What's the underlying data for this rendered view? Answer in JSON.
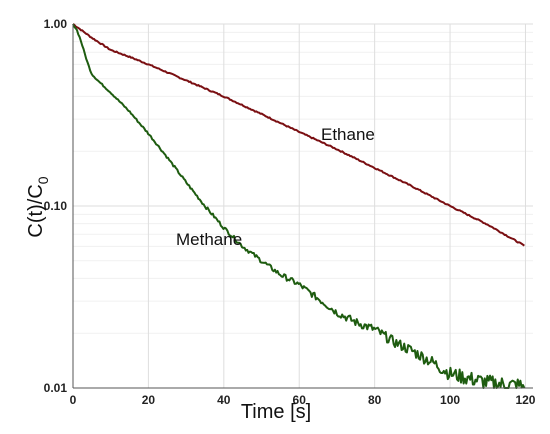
{
  "chart_data": {
    "type": "line",
    "title": "",
    "xlabel": "Time [s]",
    "ylabel": "C(t)/C",
    "ylabel_subscript": "0",
    "x_scale": "linear",
    "y_scale": "log",
    "xlim": [
      0,
      122
    ],
    "ylim": [
      0.01,
      1.0
    ],
    "x_ticks": [
      "0",
      "20",
      "40",
      "60",
      "80",
      "100",
      "120"
    ],
    "y_ticks": [
      "0.01",
      "0.10",
      "1.00"
    ],
    "grid": true,
    "legend": "none (series labeled inline)",
    "series": [
      {
        "name": "Ethane",
        "color": "#7a0f12",
        "x": [
          0,
          5,
          10,
          15,
          20,
          30,
          40,
          50,
          60,
          70,
          80,
          90,
          100,
          110,
          120
        ],
        "y": [
          1.0,
          0.84,
          0.72,
          0.66,
          0.6,
          0.49,
          0.4,
          0.32,
          0.255,
          0.205,
          0.162,
          0.128,
          0.1,
          0.079,
          0.06
        ]
      },
      {
        "name": "Methane",
        "color": "#1e5c10",
        "x": [
          0,
          1,
          2,
          3,
          4,
          5,
          7,
          10,
          15,
          20,
          25,
          30,
          35,
          40,
          45,
          50,
          55,
          60,
          65,
          70,
          75,
          80,
          85,
          90,
          95,
          100,
          105,
          110,
          115,
          120
        ],
        "y": [
          1.0,
          0.93,
          0.82,
          0.7,
          0.6,
          0.53,
          0.48,
          0.42,
          0.33,
          0.25,
          0.185,
          0.135,
          0.1,
          0.076,
          0.06,
          0.05,
          0.042,
          0.037,
          0.031,
          0.026,
          0.023,
          0.021,
          0.018,
          0.016,
          0.014,
          0.012,
          0.0113,
          0.0107,
          0.0104,
          0.0102
        ]
      }
    ]
  }
}
